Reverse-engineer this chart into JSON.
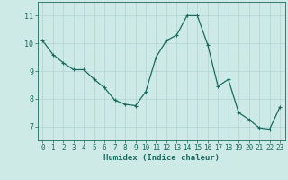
{
  "x": [
    0,
    1,
    2,
    3,
    4,
    5,
    6,
    7,
    8,
    9,
    10,
    11,
    12,
    13,
    14,
    15,
    16,
    17,
    18,
    19,
    20,
    21,
    22,
    23
  ],
  "y": [
    10.1,
    9.6,
    9.3,
    9.05,
    9.05,
    8.7,
    8.4,
    7.95,
    7.8,
    7.75,
    8.25,
    9.5,
    10.1,
    10.3,
    11.0,
    11.0,
    9.95,
    8.45,
    8.7,
    7.5,
    7.25,
    6.95,
    6.9,
    7.7
  ],
  "line_color": "#1a6b5e",
  "marker": "+",
  "marker_size": 3,
  "marker_lw": 0.8,
  "line_width": 0.9,
  "bg_color": "#ceeae7",
  "grid_color": "#b0d4d0",
  "xlabel": "Humidex (Indice chaleur)",
  "xlabel_color": "#1a6b5e",
  "tick_color": "#1a6b5e",
  "ylim": [
    6.5,
    11.5
  ],
  "yticks": [
    7,
    8,
    9,
    10,
    11
  ],
  "xticks": [
    0,
    1,
    2,
    3,
    4,
    5,
    6,
    7,
    8,
    9,
    10,
    11,
    12,
    13,
    14,
    15,
    16,
    17,
    18,
    19,
    20,
    21,
    22,
    23
  ],
  "tick_fontsize": 5.5,
  "xlabel_fontsize": 6.5,
  "xlabel_fontweight": "bold"
}
